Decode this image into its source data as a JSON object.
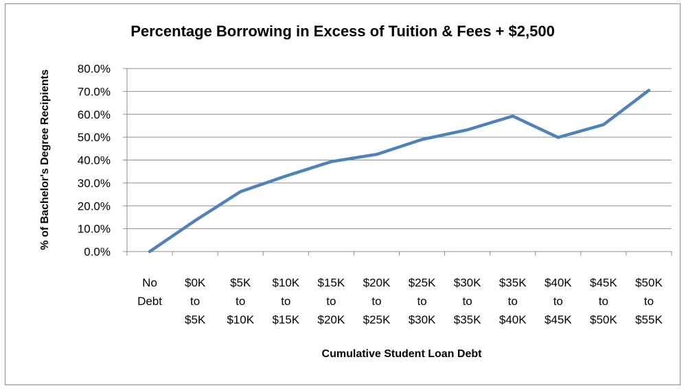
{
  "chart_data": {
    "type": "line",
    "title": "Percentage Borrowing in Excess of Tuition & Fees + $2,500",
    "xlabel": "Cumulative Student Loan Debt",
    "ylabel": "% of Bachelor's Degree Recipients",
    "categories": [
      [
        "No",
        "Debt"
      ],
      [
        "$0K",
        "to",
        "$5K"
      ],
      [
        "$5K",
        "to",
        "$10K"
      ],
      [
        "$10K",
        "to",
        "$15K"
      ],
      [
        "$15K",
        "to",
        "$20K"
      ],
      [
        "$20K",
        "to",
        "$25K"
      ],
      [
        "$25K",
        "to",
        "$30K"
      ],
      [
        "$30K",
        "to",
        "$35K"
      ],
      [
        "$35K",
        "to",
        "$40K"
      ],
      [
        "$40K",
        "to",
        "$45K"
      ],
      [
        "$45K",
        "to",
        "$50K"
      ],
      [
        "$50K",
        "to",
        "$55K"
      ]
    ],
    "series": [
      {
        "values": [
          0.0,
          13.5,
          26.2,
          33.0,
          39.3,
          42.5,
          49.0,
          53.2,
          59.2,
          49.9,
          55.5,
          70.5
        ]
      }
    ],
    "ylim": [
      0,
      80
    ],
    "yticks": [
      "0.0%",
      "10.0%",
      "20.0%",
      "30.0%",
      "40.0%",
      "50.0%",
      "60.0%",
      "70.0%",
      "80.0%"
    ],
    "grid": true,
    "legend": "none",
    "line_color": "#4f81bd"
  }
}
